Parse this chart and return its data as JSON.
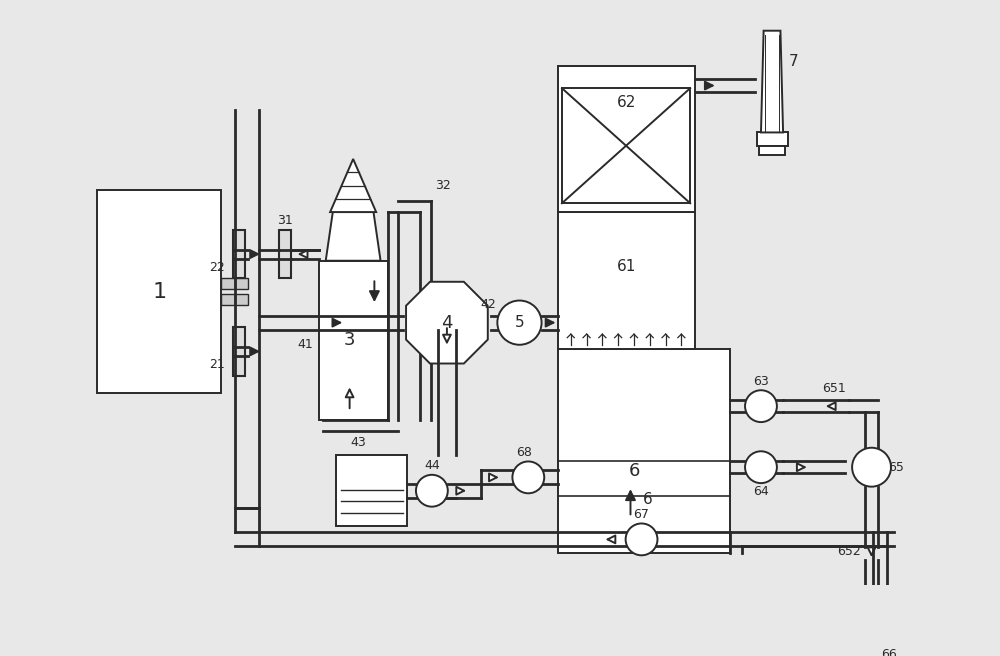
{
  "bg_color": "#e8e8e8",
  "line_color": "#2a2a2a",
  "fill_color": "#ffffff",
  "lw": 1.4
}
